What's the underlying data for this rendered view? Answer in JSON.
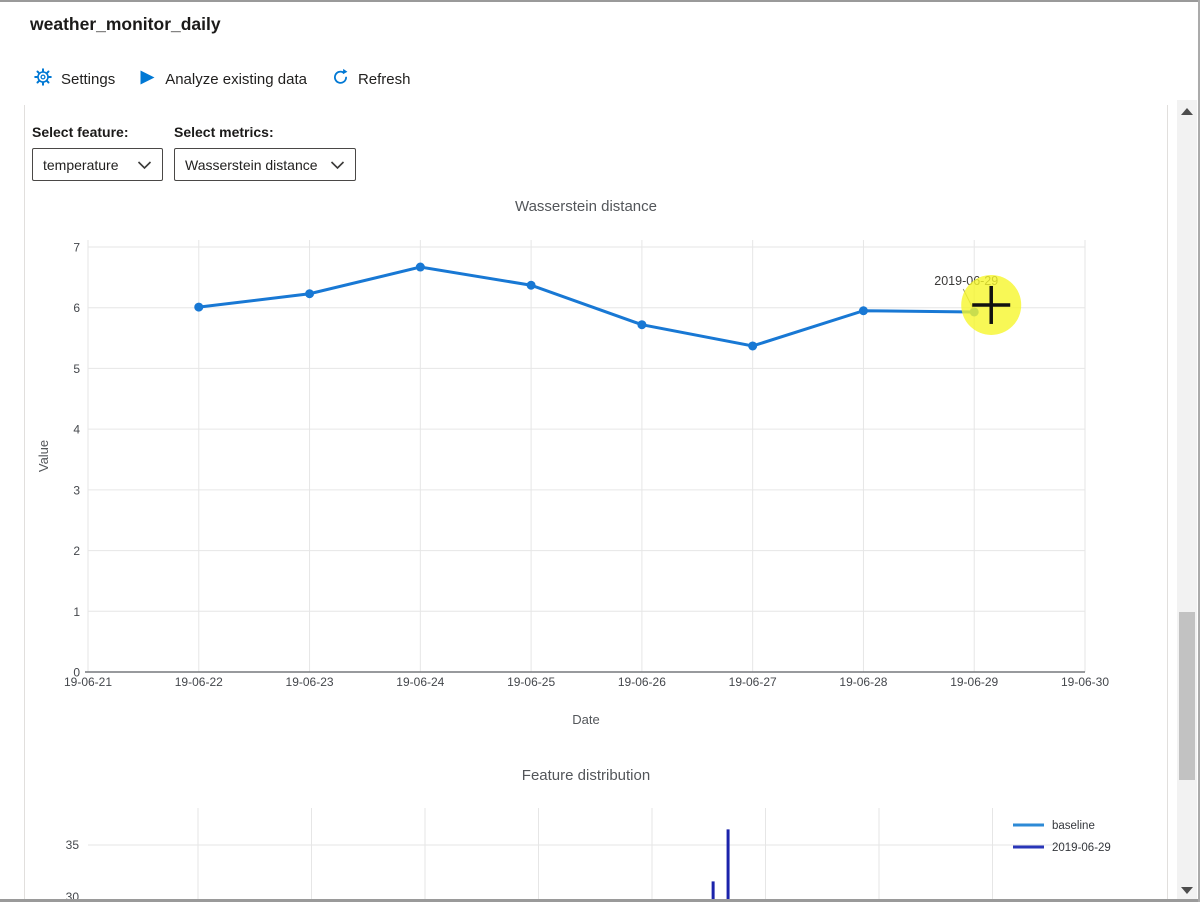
{
  "window": {
    "title": "weather_monitor_daily"
  },
  "toolbar": {
    "settings_label": "Settings",
    "analyze_label": "Analyze existing data",
    "refresh_label": "Refresh"
  },
  "filters": {
    "feature_label": "Select feature:",
    "feature_value": "temperature",
    "metrics_label": "Select metrics:",
    "metrics_value": "Wasserstein distance"
  },
  "colors": {
    "accent": "#0078d4",
    "line_series": "#1878d4",
    "grid": "#e6e6e6",
    "axis_line": "#76797d",
    "tick_text": "#44474c",
    "muted_text": "#53565a",
    "annotation_text": "#3b3a39",
    "click_highlight": "#f6f62c"
  },
  "chart_data": [
    {
      "type": "line",
      "title": "Wasserstein distance",
      "xlabel": "Date",
      "ylabel": "Value",
      "ylim": [
        0,
        7
      ],
      "yticks": [
        0,
        1,
        2,
        3,
        4,
        5,
        6,
        7
      ],
      "categories": [
        "19-06-21",
        "19-06-22",
        "19-06-23",
        "19-06-24",
        "19-06-25",
        "19-06-26",
        "19-06-27",
        "19-06-28",
        "19-06-29",
        "19-06-30"
      ],
      "grid": true,
      "legend": false,
      "series": [
        {
          "name": "Wasserstein distance",
          "color": "#1878d4",
          "points": [
            {
              "x": "19-06-22",
              "y": 6.01
            },
            {
              "x": "19-06-23",
              "y": 6.23
            },
            {
              "x": "19-06-24",
              "y": 6.67
            },
            {
              "x": "19-06-25",
              "y": 6.37
            },
            {
              "x": "19-06-26",
              "y": 5.72
            },
            {
              "x": "19-06-27",
              "y": 5.37
            },
            {
              "x": "19-06-28",
              "y": 5.95
            },
            {
              "x": "19-06-29",
              "y": 5.93
            }
          ]
        }
      ],
      "annotation": {
        "text": "2019-06-29",
        "x": "19-06-29",
        "y": 5.93
      }
    },
    {
      "type": "area",
      "title": "Feature distribution",
      "yticks_visible": [
        35,
        30
      ],
      "grid": true,
      "legend_position": "right",
      "legend": [
        {
          "label": "baseline",
          "color": "#2d8ad6"
        },
        {
          "label": "2019-06-29",
          "color": "#2936b8"
        }
      ],
      "series": [
        {
          "name": "2019-06-29",
          "color": "#1b23ab",
          "spikes": [
            {
              "x_frac": 0.627,
              "peak": 31.5
            },
            {
              "x_frac": 0.642,
              "peak": 36.5
            }
          ]
        }
      ]
    }
  ],
  "click_indicator": {
    "shape": "crosshair-plus",
    "label": "2019-06-29",
    "color": "#f6f62c"
  }
}
